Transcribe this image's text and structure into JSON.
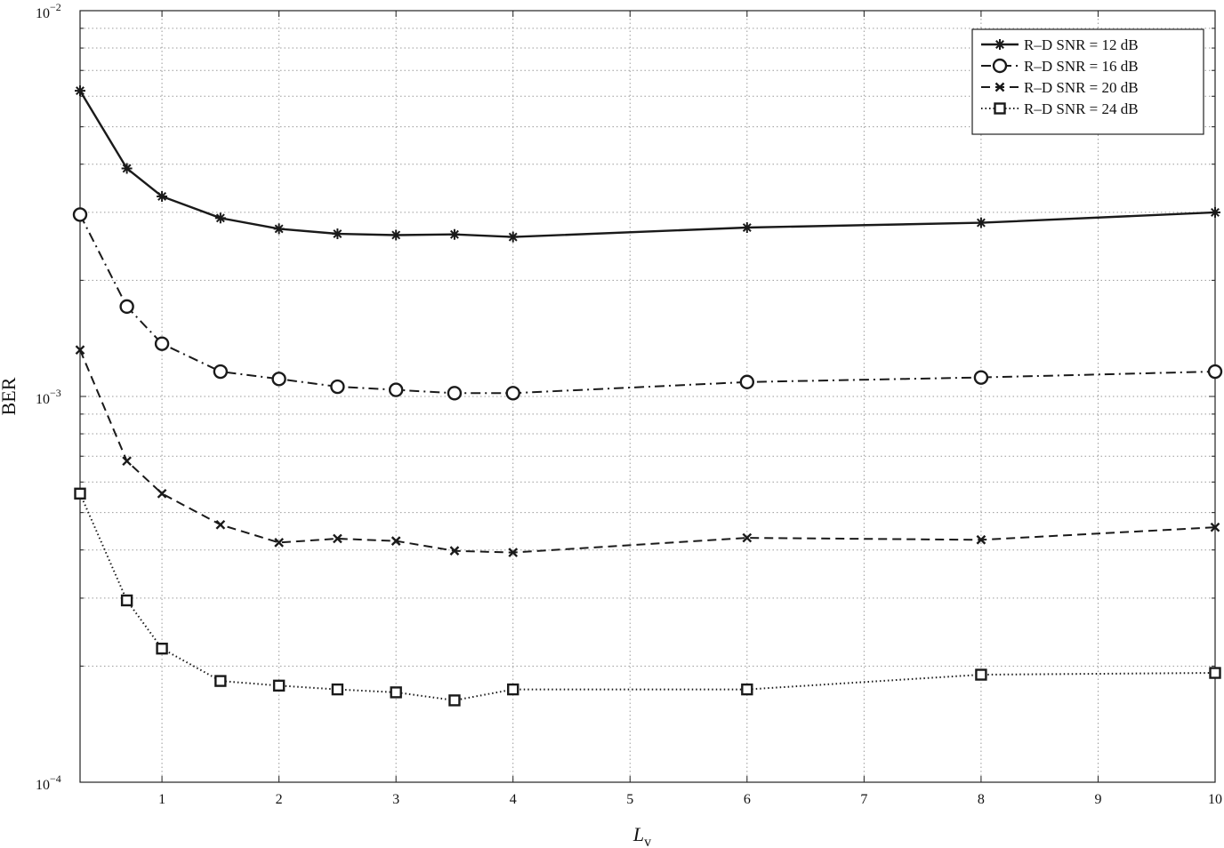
{
  "chart_data": {
    "type": "line",
    "title": "",
    "xlabel": "L",
    "xlabel_sub": "v",
    "ylabel": "BER",
    "xlim": [
      0.3,
      10
    ],
    "ylim": [
      0.0001,
      0.01
    ],
    "yscale": "log",
    "grid": true,
    "legend_position": "top-right",
    "x_ticks": [
      1,
      2,
      3,
      4,
      5,
      6,
      7,
      8,
      9,
      10
    ],
    "x_tick_labels": [
      "1",
      "2",
      "3",
      "4",
      "5",
      "6",
      "7",
      "8",
      "9",
      "10"
    ],
    "y_ticks": [
      {
        "value": 0.01,
        "base": "10",
        "exp": "−2"
      },
      {
        "value": 0.001,
        "base": "10",
        "exp": "−3"
      },
      {
        "value": 0.0001,
        "base": "10",
        "exp": "−4"
      }
    ],
    "x": [
      0.3,
      0.7,
      1,
      1.5,
      2,
      2.5,
      3,
      3.5,
      4,
      6,
      8,
      10
    ],
    "series": [
      {
        "name": "R–D SNR = 12 dB",
        "marker": "asterisk",
        "dash": "solid",
        "values": [
          0.0062,
          0.0039,
          0.0033,
          0.0029,
          0.00272,
          0.00264,
          0.00262,
          0.00263,
          0.00259,
          0.00274,
          0.00282,
          0.003
        ]
      },
      {
        "name": "R–D SNR = 16 dB",
        "marker": "circle",
        "dash": "dashdot",
        "values": [
          0.00296,
          0.00171,
          0.00137,
          0.00116,
          0.00111,
          0.00106,
          0.00104,
          0.00102,
          0.00102,
          0.00109,
          0.00112,
          0.00116
        ]
      },
      {
        "name": "R–D SNR = 20 dB",
        "marker": "x",
        "dash": "dashed",
        "values": [
          0.00132,
          0.00068,
          0.00056,
          0.000465,
          0.000418,
          0.000428,
          0.000422,
          0.000398,
          0.000394,
          0.00043,
          0.000425,
          0.000458
        ]
      },
      {
        "name": "R–D SNR = 24 dB",
        "marker": "square",
        "dash": "dotted",
        "values": [
          0.00056,
          0.000296,
          0.000222,
          0.000183,
          0.000178,
          0.000174,
          0.000171,
          0.000163,
          0.000174,
          0.000174,
          0.00019,
          0.000192
        ]
      }
    ],
    "colors": {
      "line": "#1a1a1a",
      "grid": "#9a9a9a",
      "axes": "#222222"
    }
  }
}
